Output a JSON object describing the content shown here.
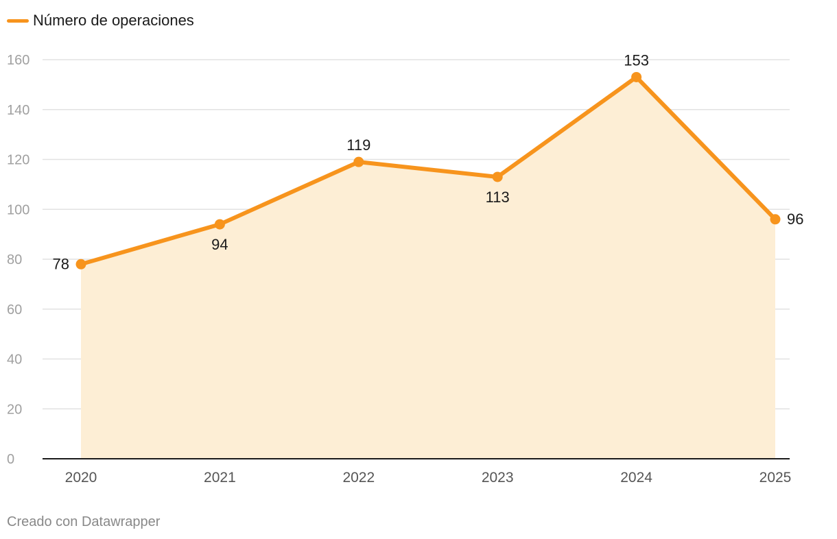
{
  "chart_data": {
    "type": "area",
    "title": "",
    "xlabel": "",
    "ylabel": "",
    "categories": [
      "2020",
      "2021",
      "2022",
      "2023",
      "2024",
      "2025"
    ],
    "series": [
      {
        "name": "Número de operaciones",
        "values": [
          78,
          94,
          119,
          113,
          153,
          96
        ]
      }
    ],
    "ylim": [
      0,
      160
    ],
    "yticks": [
      0,
      20,
      40,
      60,
      80,
      100,
      120,
      140,
      160
    ],
    "grid": true,
    "legend": "top-left",
    "data_label_positions": [
      "left",
      "below",
      "above",
      "below",
      "above",
      "right"
    ]
  },
  "colors": {
    "line": "#f7941d",
    "fill": "#fdeed5",
    "grid": "#e2e2e2",
    "axis": "#1a1a1a",
    "tick_text": "#a0a0a0",
    "label_text": "#1a1a1a"
  },
  "footer": {
    "credit": "Creado con Datawrapper"
  }
}
